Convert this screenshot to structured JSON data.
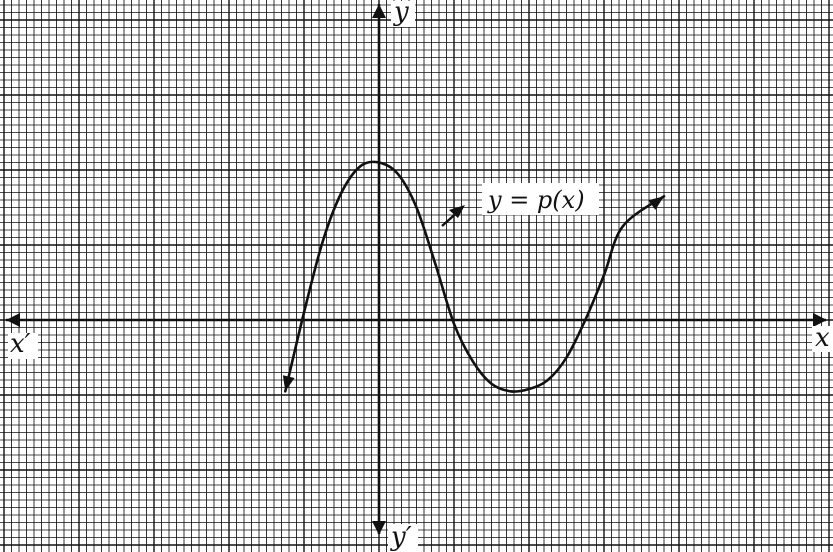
{
  "chart_data": {
    "type": "line",
    "title": "",
    "grid": true,
    "axes": {
      "x_positive_label": "x",
      "x_negative_label": "x′",
      "y_positive_label": "y",
      "y_negative_label": "y′"
    },
    "curve_label": "y = p(x)",
    "series": [
      {
        "name": "y = p(x)",
        "points": [
          [
            -1.25,
            -0.95
          ],
          [
            -1.0,
            0.1
          ],
          [
            -0.75,
            1.05
          ],
          [
            -0.5,
            1.7
          ],
          [
            -0.25,
            2.05
          ],
          [
            0.0,
            2.1
          ],
          [
            0.25,
            1.95
          ],
          [
            0.5,
            1.5
          ],
          [
            0.75,
            0.75
          ],
          [
            1.0,
            -0.05
          ],
          [
            1.25,
            -0.55
          ],
          [
            1.5,
            -0.85
          ],
          [
            1.75,
            -0.95
          ],
          [
            2.0,
            -0.92
          ],
          [
            2.25,
            -0.8
          ],
          [
            2.5,
            -0.5
          ],
          [
            2.75,
            0.0
          ],
          [
            3.0,
            0.6
          ],
          [
            3.25,
            1.25
          ],
          [
            3.8,
            1.65
          ]
        ]
      }
    ],
    "colors": {
      "grid": "#111111",
      "axis": "#111111",
      "curve": "#111111",
      "background": "#ffffff"
    }
  }
}
